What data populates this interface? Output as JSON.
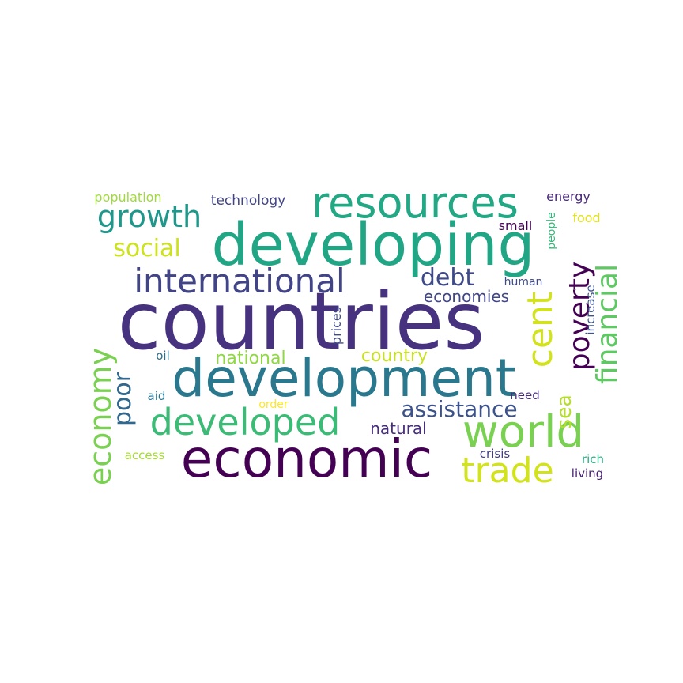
{
  "words": [
    {
      "text": "countries",
      "color": "#46327e"
    },
    {
      "text": "developing",
      "color": "#21a685"
    },
    {
      "text": "development",
      "color": "#2a788e"
    },
    {
      "text": "economic",
      "color": "#440154"
    },
    {
      "text": "resources",
      "color": "#22a884"
    },
    {
      "text": "international",
      "color": "#414487"
    },
    {
      "text": "world",
      "color": "#7ad151"
    },
    {
      "text": "developed",
      "color": "#3bbb75"
    },
    {
      "text": "trade",
      "color": "#d2e21b"
    },
    {
      "text": "growth",
      "color": "#1f988b"
    },
    {
      "text": "poverty",
      "color": "#440154"
    },
    {
      "text": "financial",
      "color": "#5ec962"
    },
    {
      "text": "economy",
      "color": "#7ad151"
    },
    {
      "text": "assistance",
      "color": "#3b528b"
    },
    {
      "text": "cent",
      "color": "#d2e21b"
    },
    {
      "text": "social",
      "color": "#cde11d"
    },
    {
      "text": "debt",
      "color": "#3e4989"
    },
    {
      "text": "poor",
      "color": "#31688e"
    },
    {
      "text": "country",
      "color": "#c8e020"
    },
    {
      "text": "national",
      "color": "#8fd744"
    },
    {
      "text": "natural",
      "color": "#472d7b"
    },
    {
      "text": "economies",
      "color": "#404688"
    },
    {
      "text": "sea",
      "color": "#b5de2b"
    },
    {
      "text": "technology",
      "color": "#414487"
    },
    {
      "text": "population",
      "color": "#9fda3a"
    },
    {
      "text": "energy",
      "color": "#482878"
    },
    {
      "text": "food",
      "color": "#e0e318"
    },
    {
      "text": "small",
      "color": "#440154"
    },
    {
      "text": "people",
      "color": "#35b779"
    },
    {
      "text": "human",
      "color": "#3e4a89"
    },
    {
      "text": "increase",
      "color": "#3b528b"
    },
    {
      "text": "prices",
      "color": "#3e4989"
    },
    {
      "text": "oil",
      "color": "#2d708e"
    },
    {
      "text": "aid",
      "color": "#2c728e"
    },
    {
      "text": "need",
      "color": "#472c7a"
    },
    {
      "text": "order",
      "color": "#fde725"
    },
    {
      "text": "access",
      "color": "#a5db36"
    },
    {
      "text": "crisis",
      "color": "#433e85"
    },
    {
      "text": "rich",
      "color": "#27ad81"
    },
    {
      "text": "living",
      "color": "#482173"
    }
  ]
}
